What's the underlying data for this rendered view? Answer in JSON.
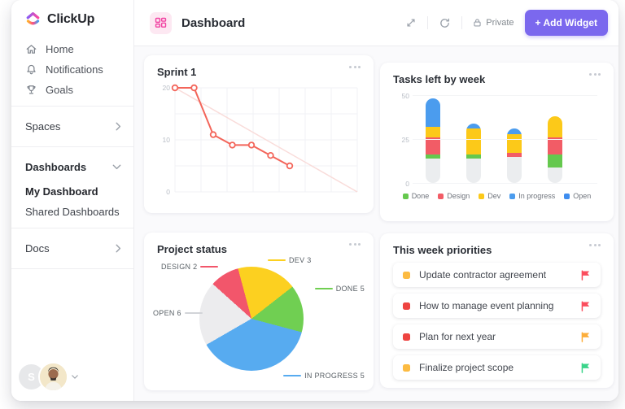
{
  "app": {
    "name": "ClickUp"
  },
  "sidebar": {
    "items": [
      {
        "icon": "home-icon",
        "label": "Home"
      },
      {
        "icon": "bell-icon",
        "label": "Notifications"
      },
      {
        "icon": "trophy-icon",
        "label": "Goals"
      }
    ],
    "spaces_label": "Spaces",
    "dashboards_label": "Dashboards",
    "dashboards_items": [
      "My Dashboard",
      "Shared Dashboards"
    ],
    "docs_label": "Docs",
    "avatar_initial": "S"
  },
  "header": {
    "title": "Dashboard",
    "privacy_label": "Private",
    "add_widget_label": "+ Add Widget",
    "accent_color": "#7b68ee"
  },
  "widgets": {
    "sprint": {
      "title": "Sprint 1",
      "chart_data": {
        "type": "line",
        "x": [
          1,
          2,
          3,
          4,
          5,
          6,
          7
        ],
        "values": [
          20,
          20,
          11,
          9,
          9,
          7,
          5
        ],
        "ideal_line": {
          "from": 20,
          "to": 0
        },
        "ylim": [
          0,
          20
        ],
        "yticks": [
          20,
          10,
          0
        ],
        "line_color": "#f3655a",
        "ideal_color": "#f9dcda",
        "grid": true
      }
    },
    "tasks_left": {
      "title": "Tasks left by week",
      "chart_data": {
        "type": "stacked-bar",
        "bars": 4,
        "ylim": [
          0,
          50
        ],
        "yticks": [
          50,
          25,
          0
        ],
        "series": [
          {
            "name": "",
            "color": "#ebedef",
            "values": [
              14,
              14,
              15,
              9
            ]
          },
          {
            "name": "Done",
            "color": "#65c84e",
            "values": [
              2,
              2,
              0,
              7
            ]
          },
          {
            "name": "Design",
            "color": "#f25c66",
            "values": [
              10,
              0,
              2,
              10
            ]
          },
          {
            "name": "Dev",
            "color": "#fcc919",
            "values": [
              6,
              15,
              11,
              12
            ]
          },
          {
            "name": "In progress",
            "color": "#4b9cee",
            "values": [
              16,
              3,
              3,
              0
            ]
          }
        ],
        "legend": [
          {
            "label": "Done",
            "color": "#65c84e"
          },
          {
            "label": "Design",
            "color": "#f25c66"
          },
          {
            "label": "Dev",
            "color": "#fcc919"
          },
          {
            "label": "In progress",
            "color": "#4b9cee"
          },
          {
            "label": "Open",
            "color": "#3f8def"
          }
        ]
      }
    },
    "project_status": {
      "title": "Project status",
      "chart_data": {
        "type": "pie",
        "slices": [
          {
            "label": "DEV",
            "value": 3,
            "color": "#fcd020",
            "start": -15,
            "end": 52
          },
          {
            "label": "DONE",
            "value": 5,
            "color": "#70cf52",
            "start": 52,
            "end": 105
          },
          {
            "label": "IN PROGRESS",
            "value": 5,
            "color": "#57abf0",
            "start": 105,
            "end": 240
          },
          {
            "label": "OPEN",
            "value": 6,
            "color": "#ececee",
            "start": 240,
            "end": 312
          },
          {
            "label": "DESIGN",
            "value": 2,
            "color": "#f2566b",
            "start": 312,
            "end": 345
          }
        ]
      }
    },
    "priorities": {
      "title": "This week priorities",
      "items": [
        {
          "dot_color": "#fcbb42",
          "text": "Update contractor agreement",
          "flag_color": "#fb4e5e"
        },
        {
          "dot_color": "#ee4441",
          "text": "How to manage event planning",
          "flag_color": "#fb4e5e"
        },
        {
          "dot_color": "#ee4441",
          "text": "Plan for next year",
          "flag_color": "#fcae3b"
        },
        {
          "dot_color": "#fcbb42",
          "text": "Finalize project scope",
          "flag_color": "#3bd48a"
        }
      ]
    }
  }
}
